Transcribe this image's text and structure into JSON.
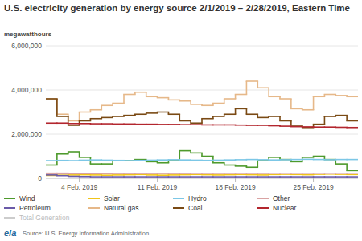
{
  "chart_data": {
    "type": "line",
    "title": "U.S. electricity generation by energy source 2/1/2019 – 2/28/2019, Eastern Time",
    "y_label": "megawatthours",
    "source": "Source: U.S. Energy Information Administration",
    "logo": "eia",
    "categories": [
      null,
      null,
      null,
      "4 Feb. 2019",
      null,
      null,
      null,
      null,
      null,
      null,
      "11 Feb. 2019",
      null,
      null,
      null,
      null,
      null,
      null,
      "18 Feb. 2019",
      null,
      null,
      null,
      null,
      null,
      null,
      "25 Feb. 2019",
      null,
      null,
      null
    ],
    "ylim": [
      0,
      6000000
    ],
    "yticks": [
      0,
      {
        "value": 2000000,
        "label": "2,000,000"
      },
      {
        "value": 4000000,
        "label": "4,000,000"
      },
      {
        "value": 6000000,
        "label": "6,000,000"
      }
    ],
    "grid": true,
    "line_style": "step",
    "series": [
      {
        "name": "Wind",
        "color": "#4e9a2c",
        "values": [
          600000,
          1100000,
          1200000,
          950000,
          650000,
          650000,
          800000,
          800000,
          850000,
          750000,
          700000,
          800000,
          1250000,
          1150000,
          1000000,
          700000,
          600000,
          550000,
          500000,
          800000,
          950000,
          850000,
          750000,
          950000,
          1000000,
          850000,
          650000,
          350000
        ]
      },
      {
        "name": "Solar",
        "color": "#f0c419",
        "values": [
          130000,
          140000,
          150000,
          160000,
          150000,
          140000,
          150000,
          160000,
          170000,
          150000,
          140000,
          150000,
          160000,
          170000,
          160000,
          150000,
          160000,
          170000,
          160000,
          150000,
          170000,
          180000,
          170000,
          160000,
          180000,
          190000,
          180000,
          170000
        ]
      },
      {
        "name": "Hydro",
        "color": "#7cc7e6",
        "values": [
          800000,
          810000,
          800000,
          820000,
          830000,
          820000,
          810000,
          800000,
          810000,
          820000,
          830000,
          840000,
          830000,
          820000,
          810000,
          820000,
          830000,
          840000,
          850000,
          840000,
          830000,
          840000,
          850000,
          860000,
          850000,
          840000,
          850000,
          850000
        ]
      },
      {
        "name": "Other",
        "color": "#d9a3a3",
        "values": [
          230000,
          230000,
          225000,
          225000,
          225000,
          225000,
          220000,
          220000,
          220000,
          220000,
          220000,
          220000,
          220000,
          215000,
          215000,
          215000,
          215000,
          215000,
          215000,
          215000,
          210000,
          210000,
          210000,
          210000,
          210000,
          210000,
          210000,
          210000
        ]
      },
      {
        "name": "Petroleum",
        "color": "#6a5aa8",
        "values": [
          150000,
          120000,
          90000,
          80000,
          70000,
          70000,
          70000,
          70000,
          70000,
          70000,
          70000,
          70000,
          70000,
          70000,
          70000,
          70000,
          70000,
          70000,
          70000,
          70000,
          70000,
          70000,
          70000,
          70000,
          70000,
          70000,
          70000,
          70000
        ]
      },
      {
        "name": "Natural gas",
        "color": "#e6b889",
        "values": [
          3600000,
          2900000,
          2600000,
          3000000,
          3100000,
          3300000,
          3400000,
          3800000,
          3900000,
          3700000,
          3650000,
          3550000,
          3500000,
          3350000,
          3300000,
          3400000,
          3600000,
          3800000,
          4400000,
          4100000,
          3700000,
          3600000,
          3150000,
          3100000,
          3700000,
          3800000,
          3750000,
          3700000
        ]
      },
      {
        "name": "Coal",
        "color": "#7a4a14",
        "values": [
          3600000,
          2800000,
          2400000,
          2600000,
          2700000,
          2750000,
          2800000,
          2850000,
          2900000,
          2950000,
          3000000,
          2900000,
          2600000,
          2500000,
          2700000,
          2800000,
          2900000,
          3150000,
          2900000,
          2750000,
          2800000,
          2600000,
          2400000,
          2300000,
          2450000,
          2800000,
          2850000,
          2600000
        ]
      },
      {
        "name": "Nuclear",
        "color": "#b3262e",
        "values": [
          2500000,
          2500000,
          2480000,
          2480000,
          2470000,
          2470000,
          2460000,
          2460000,
          2450000,
          2450000,
          2440000,
          2440000,
          2430000,
          2430000,
          2420000,
          2420000,
          2420000,
          2410000,
          2400000,
          2400000,
          2380000,
          2360000,
          2340000,
          2330000,
          2320000,
          2320000,
          2310000,
          2300000
        ]
      },
      {
        "name": "Total Generation",
        "color": "#cccccc",
        "values": [
          null,
          null,
          null,
          null,
          null,
          null,
          null,
          null,
          null,
          null,
          null,
          null,
          null,
          null,
          null,
          null,
          null,
          null,
          null,
          null,
          null,
          null,
          null,
          null,
          null,
          null,
          null,
          null
        ]
      }
    ]
  }
}
